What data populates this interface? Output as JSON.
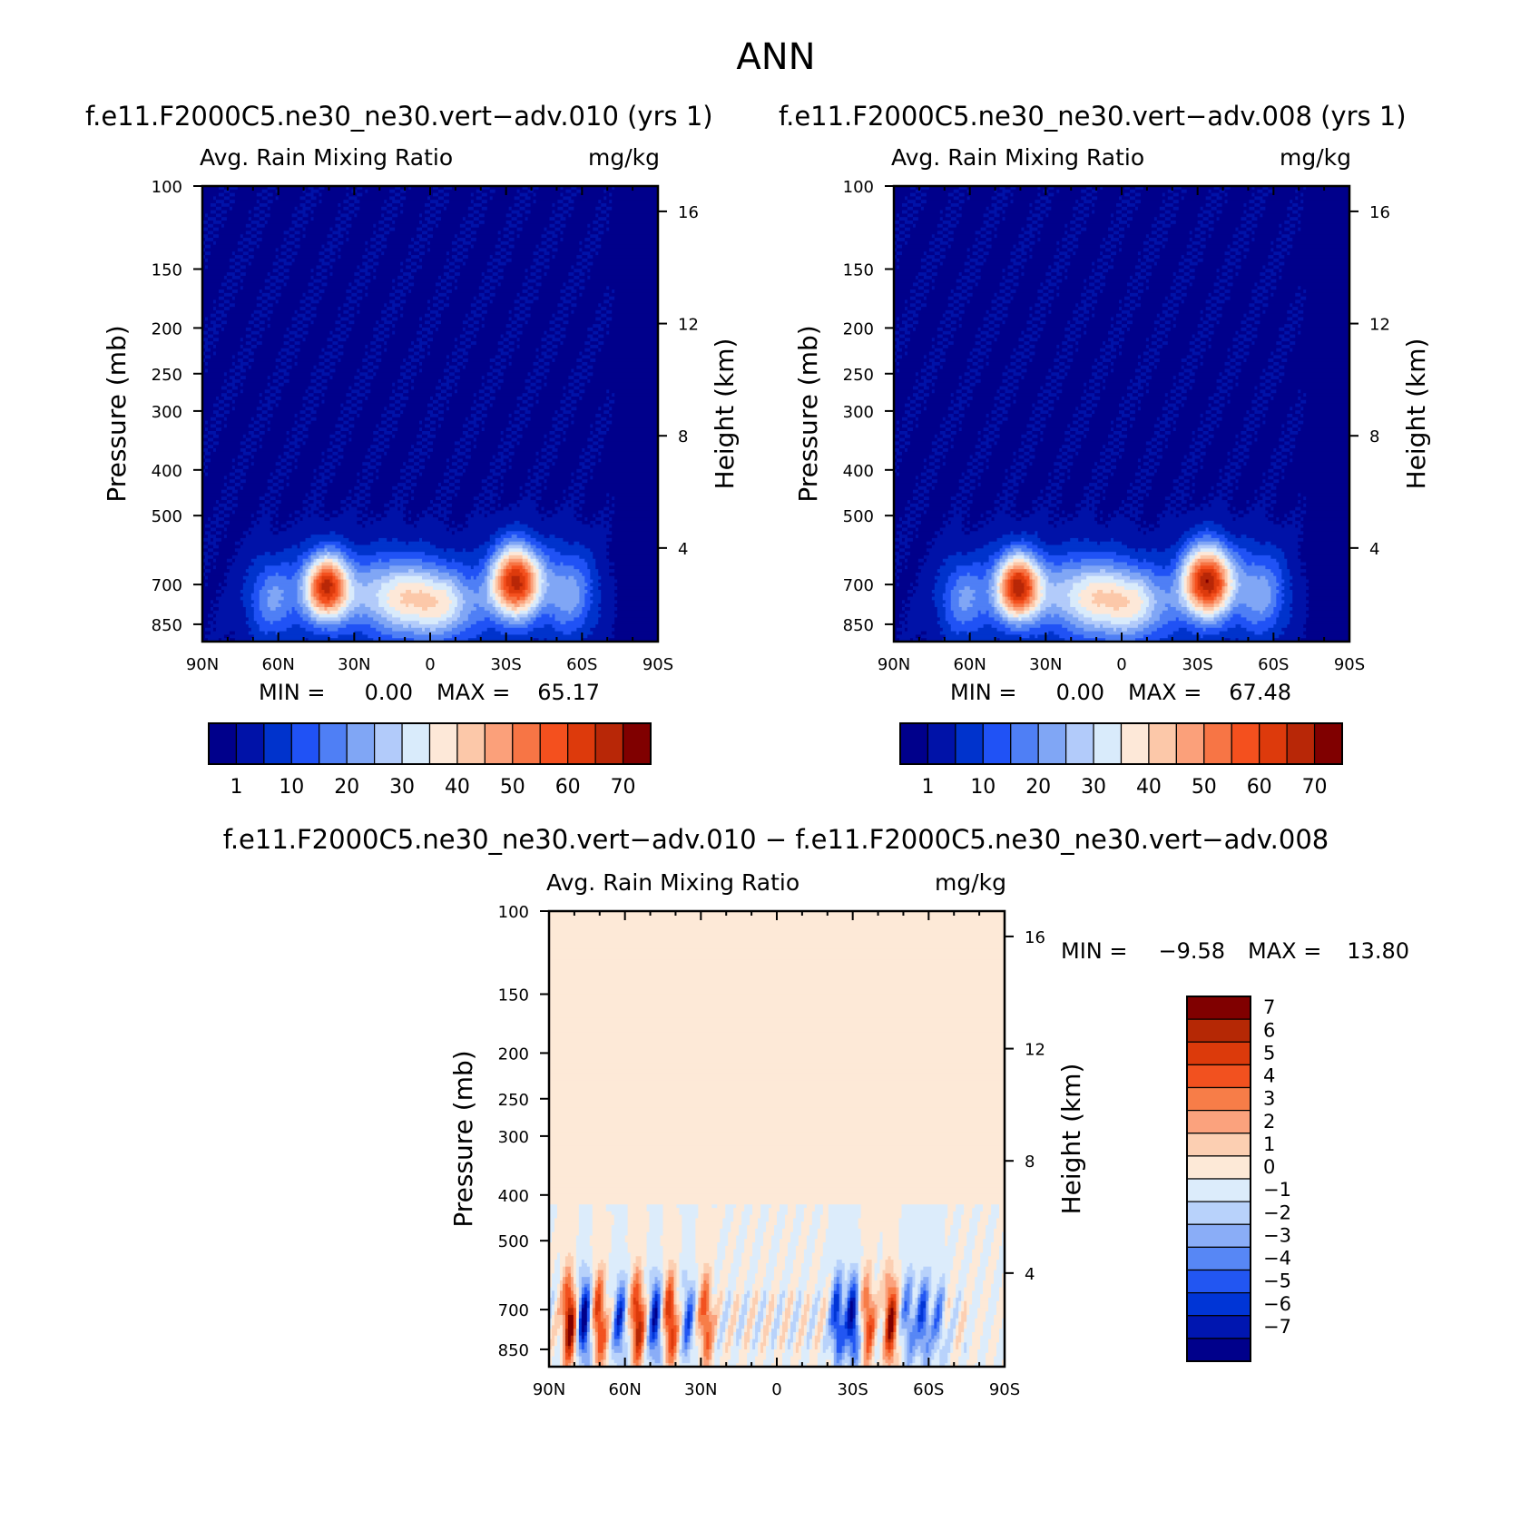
{
  "figure": {
    "season": "ANN",
    "diff_title": "f.e11.F2000C5.ne30_ne30.vert−adv.010 − f.e11.F2000C5.ne30_ne30.vert−adv.008"
  },
  "colors": {
    "abs_fill": [
      "#00008b",
      "#0012a8",
      "#0033cc",
      "#2052f5",
      "#4f7ff5",
      "#80a6f5",
      "#b2cbfa",
      "#d9ebfb",
      "#fde8d8",
      "#fcc8a9",
      "#fba07a",
      "#f77545",
      "#f4501e",
      "#dd3a0c",
      "#b82707",
      "#800000"
    ],
    "diff_fill": [
      "#00008b",
      "#0016b0",
      "#0035d6",
      "#2256f2",
      "#5787f5",
      "#8aadf7",
      "#b8d2fb",
      "#dcecfb",
      "#fde9d7",
      "#fccfb2",
      "#fba27d",
      "#f77d48",
      "#f2511f",
      "#dc3a0b",
      "#b52805",
      "#800000"
    ]
  },
  "chart_data": [
    {
      "id": "left",
      "type": "heatmap",
      "title": "f.e11.F2000C5.ne30_ne30.vert−adv.010 (yrs 1)",
      "variable": "Avg. Rain Mixing Ratio",
      "units": "mg/kg",
      "ylabel": "Pressure (mb)",
      "ylabel_right": "Height (km)",
      "xticks": [
        "90N",
        "60N",
        "30N",
        "0",
        "30S",
        "60S",
        "90S"
      ],
      "yticks": [
        "100",
        "150",
        "200",
        "250",
        "300",
        "400",
        "500",
        "700",
        "850"
      ],
      "height_ticks": [
        "16",
        "12",
        "8",
        "4"
      ],
      "ylim": [
        100,
        925
      ],
      "min_label": "MIN =",
      "min_value": "0.00",
      "max_label": "MAX =",
      "max_value": "65.17",
      "levels": [
        0.5,
        5,
        10,
        15,
        20,
        25,
        30,
        35,
        40,
        45,
        50,
        55,
        60,
        65,
        70
      ],
      "colorbar_labels": [
        "1",
        "10",
        "20",
        "30",
        "40",
        "50",
        "60",
        "70"
      ],
      "peaks_nh": "40N 700mb",
      "peaks_sh": "37S 700mb"
    },
    {
      "id": "right",
      "type": "heatmap",
      "title": "f.e11.F2000C5.ne30_ne30.vert−adv.008 (yrs 1)",
      "variable": "Avg. Rain Mixing Ratio",
      "units": "mg/kg",
      "ylabel": "Pressure (mb)",
      "ylabel_right": "Height (km)",
      "xticks": [
        "90N",
        "60N",
        "30N",
        "0",
        "30S",
        "60S",
        "90S"
      ],
      "yticks": [
        "100",
        "150",
        "200",
        "250",
        "300",
        "400",
        "500",
        "700",
        "850"
      ],
      "height_ticks": [
        "16",
        "12",
        "8",
        "4"
      ],
      "ylim": [
        100,
        925
      ],
      "min_label": "MIN =",
      "min_value": "0.00",
      "max_label": "MAX =",
      "max_value": "67.48",
      "levels": [
        0.5,
        5,
        10,
        15,
        20,
        25,
        30,
        35,
        40,
        45,
        50,
        55,
        60,
        65,
        70
      ],
      "colorbar_labels": [
        "1",
        "10",
        "20",
        "30",
        "40",
        "50",
        "60",
        "70"
      ]
    },
    {
      "id": "diff",
      "type": "heatmap",
      "variable": "Avg. Rain Mixing Ratio",
      "units": "mg/kg",
      "ylabel": "Pressure (mb)",
      "ylabel_right": "Height (km)",
      "xticks": [
        "90N",
        "60N",
        "30N",
        "0",
        "30S",
        "60S",
        "90S"
      ],
      "yticks": [
        "100",
        "150",
        "200",
        "250",
        "300",
        "400",
        "500",
        "700",
        "850"
      ],
      "height_ticks": [
        "16",
        "12",
        "8",
        "4"
      ],
      "ylim": [
        100,
        925
      ],
      "min_label": "MIN =",
      "min_value": "−9.58",
      "max_label": "MAX =",
      "max_value": "13.80",
      "levels": [
        -7,
        -6,
        -5,
        -4,
        -3,
        -2,
        -1,
        0,
        1,
        2,
        3,
        4,
        5,
        6,
        7
      ],
      "colorbar_labels": [
        "7",
        "6",
        "5",
        "4",
        "3",
        "2",
        "1",
        "0",
        "−1",
        "−2",
        "−3",
        "−4",
        "−5",
        "−6",
        "−7"
      ]
    }
  ]
}
